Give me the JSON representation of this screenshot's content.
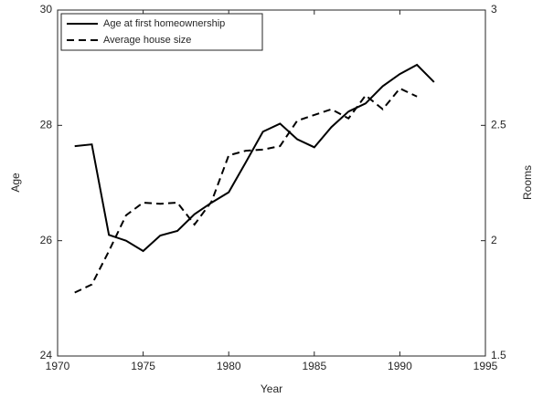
{
  "chart_data": {
    "type": "line",
    "x_label": "Year",
    "y_label": "Age",
    "y2_label": "Rooms",
    "x": [
      1971,
      1972,
      1973,
      1974,
      1975,
      1976,
      1977,
      1978,
      1979,
      1980,
      1981,
      1982,
      1983,
      1984,
      1985,
      1986,
      1987,
      1988,
      1989,
      1990,
      1991,
      1992
    ],
    "xlim": [
      1970,
      1995
    ],
    "xticks": [
      1970,
      1975,
      1980,
      1985,
      1990,
      1995
    ],
    "ylim": [
      24,
      30
    ],
    "yticks": [
      24,
      26,
      28,
      30
    ],
    "y2lim": [
      1.5,
      3
    ],
    "y2ticks": [
      1.5,
      2,
      2.5,
      3
    ],
    "legend": "upper left",
    "series": [
      {
        "name": "Age at first homeownership",
        "color": "#000000",
        "dash": "solid",
        "values": [
          27.64,
          27.67,
          26.1,
          26.0,
          25.82,
          26.09,
          26.17,
          26.46,
          26.66,
          26.84,
          27.36,
          27.89,
          28.03,
          27.76,
          27.62,
          27.97,
          28.24,
          28.38,
          28.68,
          28.89,
          29.05,
          28.75
        ]
      },
      {
        "name": "Average house size",
        "color": "#000000",
        "dash": "dashed",
        "axis": "y2",
        "values": [
          1.775,
          1.81,
          1.955,
          2.11,
          2.165,
          2.16,
          2.165,
          2.07,
          2.17,
          2.37,
          2.39,
          2.395,
          2.41,
          2.52,
          2.545,
          2.57,
          2.53,
          2.63,
          2.57,
          2.66,
          2.625,
          null
        ]
      }
    ]
  }
}
